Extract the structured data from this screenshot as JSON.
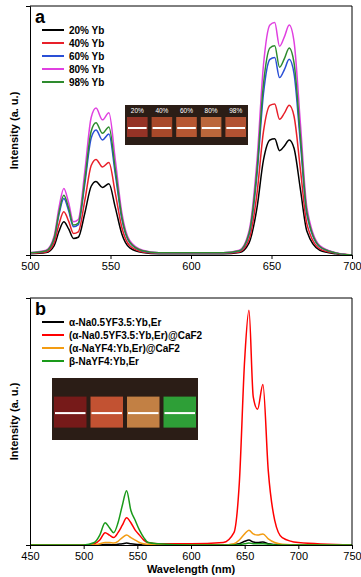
{
  "chart_data": [
    {
      "type": "line",
      "title": "a",
      "y_label": "Intensity (a. u.)",
      "x": [
        500,
        510,
        515,
        518,
        521,
        524,
        527,
        530,
        534,
        538,
        541,
        545,
        549,
        553,
        557,
        562,
        570,
        580,
        600,
        620,
        630,
        636,
        641,
        645,
        649,
        652,
        655,
        658,
        661,
        664,
        668,
        672,
        680,
        690,
        700
      ],
      "xlim": [
        500,
        700
      ],
      "xticks": [
        500,
        550,
        600,
        650,
        700
      ],
      "ylim": [
        0,
        105
      ],
      "tick_labels": "x",
      "grid": false,
      "legend": "upper left",
      "annotations": [
        "20%",
        "40%",
        "60%",
        "80%",
        "98%"
      ],
      "series": [
        {
          "name": "20% Yb",
          "color": "#000000",
          "values": [
            0.5,
            1,
            4,
            10,
            14,
            11,
            7,
            7.5,
            17.5,
            29,
            31,
            28.5,
            30,
            20,
            9,
            3,
            1,
            0.5,
            0.5,
            0.5,
            1,
            5,
            20,
            40,
            48.5,
            49,
            44,
            46,
            48.5,
            45,
            27.5,
            10,
            2,
            0.5,
            0
          ]
        },
        {
          "name": "40% Yb",
          "color": "#e8202a",
          "values": [
            0.7,
            1.3,
            5.2,
            13,
            18.2,
            14.3,
            9.1,
            9.8,
            22.8,
            37.7,
            40.3,
            37.1,
            39,
            26,
            11.7,
            3.9,
            1.3,
            0.7,
            0.7,
            0.7,
            1.3,
            6.5,
            26,
            52,
            63.1,
            63.7,
            57.2,
            59.8,
            63.1,
            58.5,
            35.8,
            13,
            2.6,
            0.7,
            0
          ]
        },
        {
          "name": "60% Yb",
          "color": "#2a4fd6",
          "values": [
            0.9,
            1.7,
            6.8,
            17,
            23.8,
            18.7,
            11.9,
            12.8,
            29.8,
            49.3,
            52.7,
            48.5,
            51,
            34,
            15.3,
            5.1,
            1.7,
            0.9,
            0.9,
            0.9,
            1.7,
            8.5,
            34,
            68,
            82.5,
            83.3,
            74.8,
            78.2,
            82.5,
            76.5,
            46.8,
            17,
            3.4,
            0.9,
            0
          ]
        },
        {
          "name": "80% Yb",
          "color": "#e040e0",
          "values": [
            1,
            2,
            8,
            20,
            28,
            22,
            14,
            15,
            35,
            58,
            62,
            57,
            60,
            40,
            18,
            6,
            2,
            1,
            1,
            1,
            2,
            10,
            40,
            80,
            97,
            98,
            88,
            92,
            97,
            90,
            55,
            20,
            4,
            1,
            0
          ]
        },
        {
          "name": "98% Yb",
          "color": "#2e8b2e",
          "values": [
            0.9,
            1.8,
            7.2,
            18,
            25.2,
            19.8,
            12.6,
            13.5,
            31.5,
            52.2,
            55.8,
            51.3,
            54,
            36,
            16.2,
            5.4,
            1.8,
            0.9,
            0.9,
            0.9,
            1.8,
            9,
            36,
            72,
            87.3,
            88.2,
            79.2,
            82.8,
            87.3,
            81,
            49.5,
            18,
            3.6,
            0.9,
            0
          ]
        }
      ]
    },
    {
      "type": "line",
      "title": "b",
      "y_label": "Intensity (a. u.)",
      "x_label": "Wavelength (nm)",
      "x": [
        450,
        480,
        500,
        510,
        515,
        520,
        524,
        528,
        532,
        536,
        540,
        544,
        548,
        552,
        556,
        560,
        570,
        600,
        630,
        640,
        645,
        650,
        654,
        658,
        662,
        667,
        672,
        678,
        685,
        700,
        750
      ],
      "xlim": [
        450,
        750
      ],
      "xticks": [
        450,
        500,
        550,
        600,
        650,
        700,
        750
      ],
      "ylim": [
        0,
        100
      ],
      "tick_labels": "x",
      "grid": false,
      "legend": "upper left",
      "series": [
        {
          "name": "α-Na0.5YF3.5:Yb,Er",
          "color": "#000000",
          "values": [
            0,
            0,
            0,
            0,
            0,
            0.2,
            0.2,
            0.1,
            0.3,
            0.5,
            0.8,
            0.5,
            0.3,
            0.2,
            0,
            0,
            0,
            0,
            0,
            0.2,
            0.5,
            1.5,
            2,
            1.2,
            1,
            1.2,
            0.5,
            0.2,
            0,
            0,
            0
          ]
        },
        {
          "name": "(α-Na0.5YF3.5:Yb,Er)@CaF2",
          "color": "#ff0000",
          "values": [
            0,
            0,
            0,
            0.5,
            2,
            5,
            4,
            3,
            5,
            8,
            11,
            9,
            6,
            4,
            2,
            1,
            0.5,
            0.5,
            1,
            5,
            25,
            75,
            95,
            60,
            55,
            65,
            30,
            10,
            3,
            1,
            0
          ]
        },
        {
          "name": "(α-NaYF4:Yb,Er)@CaF2",
          "color": "#f39c12",
          "values": [
            0,
            0,
            0,
            0,
            0.5,
            1,
            1,
            0.8,
            1.5,
            3,
            4,
            3,
            2,
            1,
            0.5,
            0.3,
            0,
            0,
            0,
            0.5,
            2,
            4.5,
            6,
            4.5,
            4,
            4.5,
            2.5,
            1,
            0.3,
            0,
            0
          ]
        },
        {
          "name": "β-NaYF4:Yb,Er",
          "color": "#1a9a1a",
          "values": [
            0,
            0,
            0,
            1,
            4,
            9,
            7,
            5,
            9,
            16,
            22,
            14,
            10,
            6,
            3,
            1,
            0.5,
            0,
            0,
            0,
            0.2,
            0.5,
            0.8,
            0.5,
            0.5,
            0.5,
            0.3,
            0,
            0,
            0,
            0
          ]
        }
      ]
    }
  ]
}
